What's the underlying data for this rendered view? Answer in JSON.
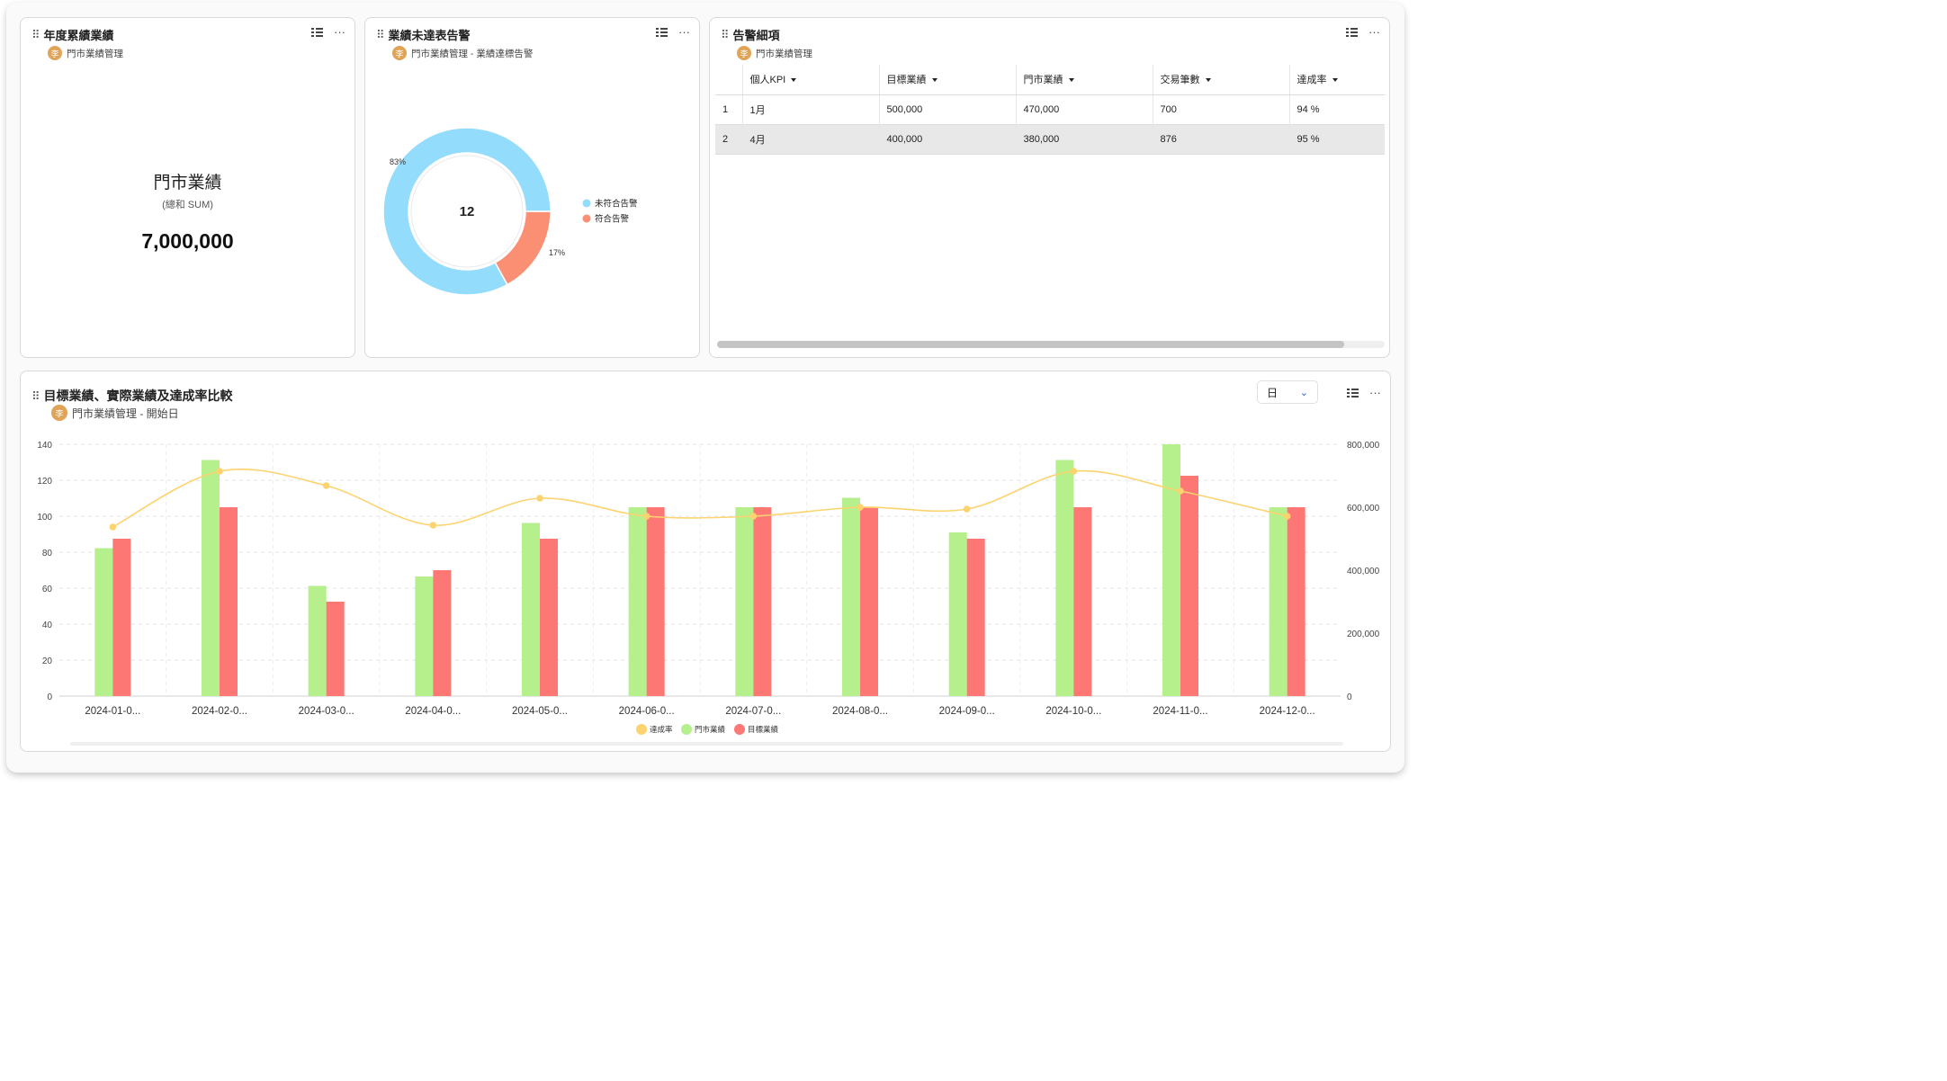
{
  "card1": {
    "title": "年度累績業績",
    "subtitle": "門市業績管理",
    "avatar": "李",
    "metric_name": "門市業績",
    "metric_agg": "(總和 SUM)",
    "metric_value": "7,000,000"
  },
  "card2": {
    "title": "業績未達表告警",
    "subtitle": "門市業績管理 - 業績達標告警",
    "avatar": "李",
    "center_value": "12",
    "slices": [
      {
        "name": "未符合告警",
        "percent": 83,
        "label": "83%",
        "color": "#93dcfb"
      },
      {
        "name": "符合告警",
        "percent": 17,
        "label": "17%",
        "color": "#fb8f74"
      }
    ]
  },
  "card3": {
    "title": "告警細項",
    "subtitle": "門市業績管理",
    "avatar": "李",
    "columns": [
      "個人KPI",
      "目標業績",
      "門市業績",
      "交易筆數",
      "達成率"
    ],
    "rows": [
      {
        "index": "1",
        "cells": [
          "1月",
          "500,000",
          "470,000",
          "700",
          "94 %"
        ]
      },
      {
        "index": "2",
        "cells": [
          "4月",
          "400,000",
          "380,000",
          "876",
          "95 %"
        ]
      }
    ]
  },
  "card4": {
    "title": "目標業績、實際業績及達成率比較",
    "subtitle": "門市業績管理 - 開始日",
    "avatar": "李",
    "granularity": "日"
  },
  "chart_data": {
    "type": "bar",
    "categories": [
      "2024-01-0...",
      "2024-02-0...",
      "2024-03-0...",
      "2024-04-0...",
      "2024-05-0...",
      "2024-06-0...",
      "2024-07-0...",
      "2024-08-0...",
      "2024-09-0...",
      "2024-10-0...",
      "2024-11-0...",
      "2024-12-0..."
    ],
    "series": [
      {
        "name": "門市業績",
        "kind": "bar",
        "axis": "right",
        "color": "#b5f08c",
        "values": [
          470000,
          750000,
          350000,
          380000,
          550000,
          600000,
          600000,
          630000,
          520000,
          750000,
          800000,
          600000
        ]
      },
      {
        "name": "目標業績",
        "kind": "bar",
        "axis": "right",
        "color": "#fd7775",
        "values": [
          500000,
          600000,
          300000,
          400000,
          500000,
          600000,
          600000,
          600000,
          500000,
          600000,
          700000,
          600000
        ]
      },
      {
        "name": "達成率",
        "kind": "line",
        "axis": "left",
        "color": "#fcd36e",
        "values": [
          94,
          125,
          117,
          95,
          110,
          100,
          100,
          105,
          104,
          125,
          114,
          100
        ]
      }
    ],
    "y_left": {
      "min": 0,
      "max": 140,
      "ticks": [
        "0",
        "20",
        "40",
        "60",
        "80",
        "100",
        "120",
        "140"
      ]
    },
    "y_right": {
      "min": 0,
      "max": 800000,
      "ticks": [
        "0",
        "200,000",
        "400,000",
        "600,000",
        "800,000"
      ]
    },
    "grid": true,
    "legend_position": "bottom"
  }
}
